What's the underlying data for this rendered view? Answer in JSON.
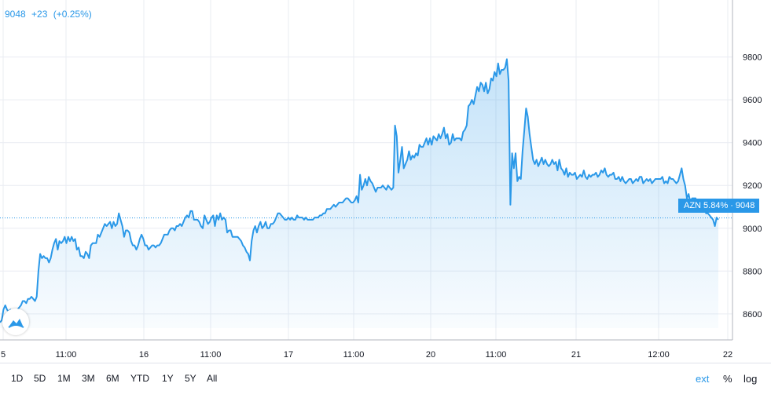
{
  "readout": {
    "last": "9048",
    "change": "+23",
    "change_pct": "(+0.25%)"
  },
  "price_tag": {
    "label": "AZN 5.84%",
    "sep": "·",
    "value": "9048"
  },
  "toolbar": {
    "ranges": [
      "1D",
      "5D",
      "1M",
      "3M",
      "6M",
      "YTD",
      "1Y",
      "5Y",
      "All"
    ],
    "ext": "ext",
    "pct": "%",
    "log": "log"
  },
  "colors": {
    "line": "#2a98e8",
    "grid": "#e9ecf2",
    "axis_text": "#131722",
    "tag": "#2a98e8"
  },
  "chart_data": {
    "type": "area",
    "title": "",
    "xlabel": "",
    "ylabel": "",
    "grid": true,
    "ylim": [
      8460,
      9960
    ],
    "y_ticks": [
      8600,
      8800,
      9000,
      9200,
      9400,
      9600,
      9800
    ],
    "x_tick_labels": [
      "5",
      "11:00",
      "16",
      "11:00",
      "17",
      "11:00",
      "20",
      "11:00",
      "21",
      "12:00",
      "22"
    ],
    "last_value": 9048,
    "series": [
      {
        "values": [
          8560,
          8570,
          8620,
          8640,
          8620,
          8610,
          8620,
          8600,
          8590,
          8600,
          8620,
          8630,
          8640,
          8660,
          8660,
          8650,
          8670,
          8670,
          8680,
          8670,
          8660,
          8680,
          8800,
          8880,
          8860,
          8870,
          8860,
          8860,
          8840,
          8860,
          8900,
          8930,
          8950,
          8900,
          8940,
          8930,
          8940,
          8960,
          8930,
          8960,
          8940,
          8960,
          8940,
          8950,
          8900,
          8910,
          8870,
          8870,
          8860,
          8890,
          8880,
          8860,
          8920,
          8930,
          8930,
          8930,
          8970,
          8960,
          8980,
          9000,
          9020,
          9010,
          9020,
          9030,
          9000,
          9030,
          9010,
          9020,
          9070,
          9040,
          9010,
          8960,
          8990,
          8990,
          8980,
          8940,
          8920,
          8920,
          8900,
          8920,
          8950,
          8970,
          8950,
          8920,
          8920,
          8900,
          8910,
          8920,
          8920,
          8910,
          8920,
          8920,
          8930,
          8950,
          8970,
          8970,
          8970,
          8990,
          9000,
          9000,
          8990,
          9010,
          9010,
          9020,
          9010,
          9030,
          9050,
          9060,
          9050,
          9080,
          9080,
          9040,
          9040,
          9040,
          9030,
          9010,
          9000,
          9060,
          9040,
          9020,
          9030,
          9050,
          9060,
          9010,
          9060,
          9040,
          9070,
          9040,
          9050,
          9040,
          8980,
          8990,
          8990,
          8960,
          8960,
          8960,
          8960,
          8950,
          8940,
          8920,
          8910,
          8890,
          8880,
          8850,
          8940,
          8990,
          9010,
          8980,
          9010,
          9030,
          9000,
          9010,
          9030,
          9000,
          9000,
          9020,
          9020,
          9030,
          9050,
          9070,
          9070,
          9060,
          9050,
          9040,
          9040,
          9050,
          9040,
          9050,
          9040,
          9040,
          9060,
          9050,
          9050,
          9050,
          9040,
          9050,
          9040,
          9040,
          9040,
          9040,
          9050,
          9050,
          9050,
          9060,
          9060,
          9070,
          9070,
          9090,
          9090,
          9090,
          9100,
          9110,
          9100,
          9110,
          9120,
          9120,
          9120,
          9130,
          9140,
          9140,
          9130,
          9120,
          9120,
          9130,
          9150,
          9120,
          9250,
          9180,
          9200,
          9230,
          9200,
          9240,
          9220,
          9210,
          9190,
          9170,
          9190,
          9190,
          9190,
          9200,
          9190,
          9180,
          9200,
          9190,
          9180,
          9190,
          9480,
          9430,
          9260,
          9320,
          9380,
          9280,
          9300,
          9320,
          9360,
          9320,
          9340,
          9330,
          9350,
          9340,
          9390,
          9380,
          9380,
          9400,
          9420,
          9390,
          9420,
          9390,
          9430,
          9420,
          9410,
          9440,
          9420,
          9440,
          9470,
          9420,
          9440,
          9390,
          9400,
          9440,
          9410,
          9420,
          9420,
          9420,
          9410,
          9450,
          9460,
          9480,
          9570,
          9580,
          9600,
          9580,
          9620,
          9660,
          9640,
          9680,
          9670,
          9640,
          9680,
          9630,
          9650,
          9700,
          9690,
          9730,
          9710,
          9770,
          9720,
          9740,
          9740,
          9750,
          9790,
          9690,
          9110,
          9350,
          9280,
          9350,
          9220,
          9240,
          9230,
          9360,
          9460,
          9560,
          9520,
          9440,
          9380,
          9320,
          9300,
          9320,
          9290,
          9310,
          9330,
          9300,
          9320,
          9300,
          9290,
          9300,
          9320,
          9300,
          9310,
          9270,
          9320,
          9280,
          9270,
          9250,
          9280,
          9240,
          9260,
          9250,
          9250,
          9260,
          9230,
          9240,
          9250,
          9240,
          9270,
          9240,
          9230,
          9250,
          9240,
          9250,
          9250,
          9260,
          9240,
          9250,
          9270,
          9260,
          9280,
          9250,
          9240,
          9250,
          9250,
          9260,
          9230,
          9230,
          9240,
          9220,
          9240,
          9220,
          9210,
          9220,
          9230,
          9230,
          9210,
          9220,
          9230,
          9220,
          9240,
          9240,
          9210,
          9220,
          9230,
          9220,
          9230,
          9210,
          9220,
          9230,
          9230,
          9230,
          9230,
          9240,
          9210,
          9220,
          9210,
          9240,
          9230,
          9230,
          9220,
          9210,
          9220,
          9250,
          9280,
          9230,
          9200,
          9140,
          9160,
          9120,
          9140,
          9140,
          9140,
          9110,
          9120,
          9100,
          9090,
          9090,
          9070,
          9070,
          9060,
          9050,
          9040,
          9010,
          9050,
          9040
        ]
      }
    ]
  }
}
